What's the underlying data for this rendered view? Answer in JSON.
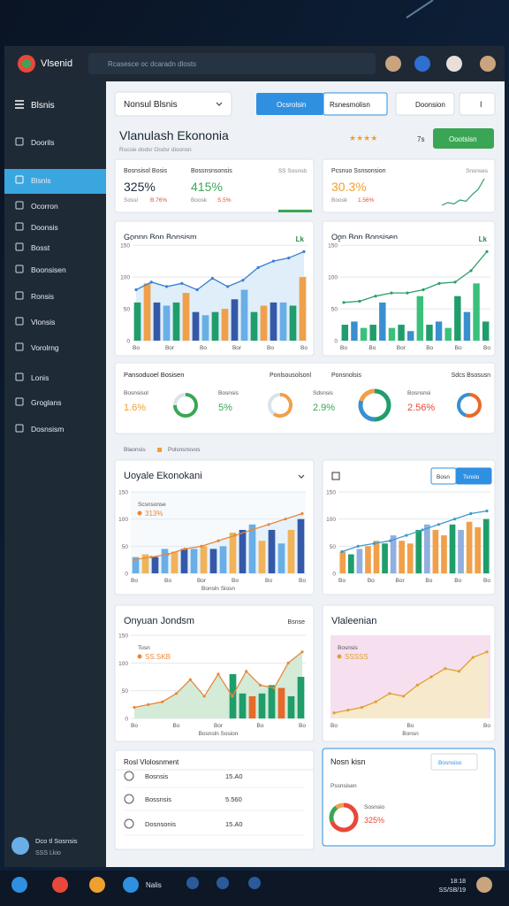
{
  "topbar": {
    "app": "Vlsenid",
    "search": "Rcasesce oc dcaradn dlosts"
  },
  "sidebar": {
    "title": "Blsnis",
    "active": 1,
    "items": [
      "Doorils",
      "Blsnis",
      "Ocorron",
      "Doonsis",
      "Bosst",
      "Boonsisen",
      "Ronsis",
      "Vlonsis",
      "Vorolrng",
      "Lonis",
      "Groglans",
      "Dosnsism"
    ],
    "user_name": "Dco tl Sosnsis",
    "user_sub": "SSS Lkio"
  },
  "toolbar": {
    "select": "Nonsul Blsnis",
    "tabs": [
      "Ocsrolsin",
      "Rsnesmolisn"
    ],
    "button": "Doonsion",
    "menu": "I"
  },
  "header": {
    "title": "Vlanulash Ekononia",
    "subtitle": "Rscsie dodsr Oodsr dioonsn",
    "stars": "★★★★",
    "count": "7s",
    "button": "Oootsisn"
  },
  "kpi_cards": [
    {
      "corner": "SS Sosnsb",
      "items": [
        {
          "label": "Bosnsisol Bosis",
          "value": "325%",
          "sub": "Sossl",
          "delta": "B.76%",
          "color": "#1d2b3a"
        },
        {
          "label": "Bossnsnsonsis",
          "value": "415%",
          "sub": "Boosk",
          "delta": "S.5%",
          "color": "#3aa655"
        }
      ]
    },
    {
      "corner": "Snsnses",
      "items": [
        {
          "label": "Pcsnuo Ssnsonsion",
          "value": "30.3%",
          "sub": "Boosk",
          "delta": "1.56%",
          "color": "#f0a030"
        }
      ],
      "spark": [
        10,
        12,
        11,
        14,
        13,
        18,
        22,
        30
      ]
    }
  ],
  "charts": [
    {
      "title": "Gonpn Bon Bonsism",
      "badge": "Lk",
      "ylim": [
        0,
        160
      ],
      "yticks": [
        0,
        50,
        100,
        150
      ],
      "bars": [
        60,
        90,
        60,
        55,
        60,
        75,
        45,
        40,
        45,
        50,
        65,
        80,
        45,
        55,
        60,
        60,
        55,
        100
      ],
      "bar_colors": [
        "#1f9d6b",
        "#f0a04b",
        "#3559a8",
        "#6aaee6"
      ],
      "line": [
        80,
        92,
        85,
        90,
        80,
        98,
        85,
        95,
        115,
        125,
        130,
        140
      ],
      "line_color": "#3b7fd0",
      "area": true,
      "area_color": "#dcecf8",
      "plot_bg": "#ffffff",
      "xlabels": [
        "Bo",
        "Bor",
        "Bo",
        "Bor",
        "Bo",
        "Bo"
      ]
    },
    {
      "title": "Ogn Bon Bonsisen",
      "badge": "Lk",
      "ylim": [
        0,
        160
      ],
      "yticks": [
        0,
        50,
        100,
        150
      ],
      "bars": [
        25,
        30,
        20,
        25,
        60,
        20,
        25,
        15,
        70,
        25,
        30,
        20,
        70,
        45,
        90,
        30
      ],
      "bar_colors": [
        "#1f9d6b",
        "#3a8fd0",
        "#3ac07a"
      ],
      "line": [
        60,
        62,
        70,
        75,
        75,
        80,
        90,
        92,
        110,
        140
      ],
      "line_color": "#2e9d6a",
      "area": false,
      "area_color": "#e3f3ea",
      "plot_bg": "#ffffff",
      "xlabels": [
        "Bo",
        "Bo",
        "Bor",
        "Bo",
        "Bo",
        "Bo"
      ]
    },
    {
      "title": "Uoyale Ekonokani",
      "legend_label": "Scsnsonse",
      "legend_value": "313%",
      "caption": "Bonsln Siosn",
      "ylim": [
        0,
        150
      ],
      "yticks": [
        0,
        50,
        100,
        150
      ],
      "bars": [
        30,
        35,
        30,
        45,
        40,
        45,
        45,
        50,
        45,
        50,
        75,
        80,
        90,
        60,
        80,
        55,
        80,
        100
      ],
      "bar_colors": [
        "#6aaee6",
        "#f0b35a",
        "#3559a8"
      ],
      "line": [
        25,
        30,
        35,
        45,
        50,
        60,
        70,
        80,
        90,
        100,
        110
      ],
      "line_color": "#e8883a",
      "area": true,
      "area_color": "#e4f1fb",
      "plot_bg": "#f6fafd",
      "xlabels": [
        "Bo",
        "Bo",
        "Bor",
        "Bo",
        "Bo",
        "Bo"
      ]
    },
    {
      "title": "",
      "buttons": [
        "Bosn",
        "Tsnslo"
      ],
      "ylim": [
        0,
        150
      ],
      "yticks": [
        0,
        50,
        100,
        150
      ],
      "bars": [
        40,
        35,
        45,
        50,
        60,
        55,
        70,
        60,
        55,
        80,
        90,
        80,
        70,
        90,
        80,
        95,
        85,
        100
      ],
      "bar_colors": [
        "#f0a04b",
        "#1f9d6b",
        "#8fb0e0",
        "#f0a04b"
      ],
      "line": [
        40,
        50,
        55,
        60,
        70,
        80,
        90,
        100,
        110,
        115
      ],
      "line_color": "#3a9ad0",
      "area": false,
      "area_color": "#ffffff",
      "plot_bg": "#ffffff",
      "xlabels": [
        "Bo",
        "Bo",
        "Bor",
        "Bo",
        "Bo",
        "Bo"
      ]
    },
    {
      "title": "Onyuan Jondsm",
      "right": "Bsnse",
      "legend_label": "Tosn",
      "legend_value": "SS.SKB",
      "caption": "Bosnsln Sosion",
      "ylim": [
        0,
        150
      ],
      "yticks": [
        0,
        50,
        100,
        150
      ],
      "bars": [
        null,
        null,
        null,
        null,
        null,
        null,
        null,
        null,
        null,
        null,
        80,
        45,
        40,
        45,
        60,
        55,
        40,
        75
      ],
      "bar_colors": [
        "#e86a2a",
        "#1f9d6b",
        "#1f9d6b"
      ],
      "line": [
        20,
        25,
        30,
        45,
        70,
        40,
        80,
        40,
        85,
        60,
        55,
        100,
        120
      ],
      "line_color": "#e8883a",
      "area": true,
      "area_color": "#cfe9d4",
      "plot_bg": "#ffffff",
      "xlabels": [
        "Bo",
        "Bo",
        "Bor",
        "Bo",
        "Bo"
      ]
    },
    {
      "title": "Vlaleenian",
      "legend_label": "Bosnsis",
      "legend_value": "SSSSS",
      "caption": "Bonsn",
      "ylim": [
        0,
        150
      ],
      "yticks": [],
      "bars": [],
      "bar_colors": [
        "#f0a04b"
      ],
      "line": [
        10,
        15,
        20,
        30,
        45,
        40,
        60,
        75,
        90,
        85,
        110,
        120
      ],
      "line_color": "#e0a030",
      "area": true,
      "area_color": "#f7eac6",
      "plot_bg": "#f6e0f0",
      "xlabels": [
        "Bo",
        "Bo",
        "Bo"
      ]
    }
  ],
  "donut_panel": {
    "title": "Pansoduoel Bosisen",
    "right_titles": [
      "Ponlsousolsonl",
      "Ponsnolsis",
      "Sdcs Bsosusn"
    ],
    "items": [
      {
        "label": "Bosnsisol",
        "value": "1.6%",
        "color": "#f0a030",
        "segments": [
          75,
          25
        ],
        "seg_colors": [
          "#3aa655",
          "#d8e4ec"
        ]
      },
      {
        "label": "Bosnsis",
        "value": "5%",
        "color": "#3aa655",
        "segments": [
          60,
          40
        ],
        "seg_colors": [
          "#f0a04b",
          "#d8e4ec"
        ]
      },
      {
        "label": "Sdsnsis",
        "value": "2.9%",
        "color": "#3aa655",
        "segments": [
          50,
          30,
          20
        ],
        "seg_colors": [
          "#1f9d6b",
          "#3a8fd0",
          "#f0a04b"
        ]
      },
      {
        "label": "Bosnsnsi",
        "value": "2.56%",
        "color": "#e8483a",
        "segments": [
          55,
          45
        ],
        "seg_colors": [
          "#e86a2a",
          "#3a8fd0"
        ]
      }
    ]
  },
  "section_legend": [
    "Blaonsis",
    "Polsnsnsvos"
  ],
  "list_panel": {
    "title": "Rosl Vlolosnment",
    "rows": [
      {
        "name": "Bosnsis",
        "value": "15.A0"
      },
      {
        "name": "Bossnsis",
        "value": "5.560"
      },
      {
        "name": "Dosnsonis",
        "value": "15.A0"
      }
    ]
  },
  "donut_card": {
    "title": "Nosn kisn",
    "button": "Bosnsiso",
    "label": "Pssnsisen",
    "sub": "Sosnsio",
    "value": "325%",
    "segments": [
      70,
      20,
      10
    ],
    "seg_colors": [
      "#e8483a",
      "#3aa655",
      "#f0a04b"
    ]
  },
  "taskbar": {
    "label": "Nalis",
    "time": "18:18",
    "date": "SS/SB/19"
  }
}
